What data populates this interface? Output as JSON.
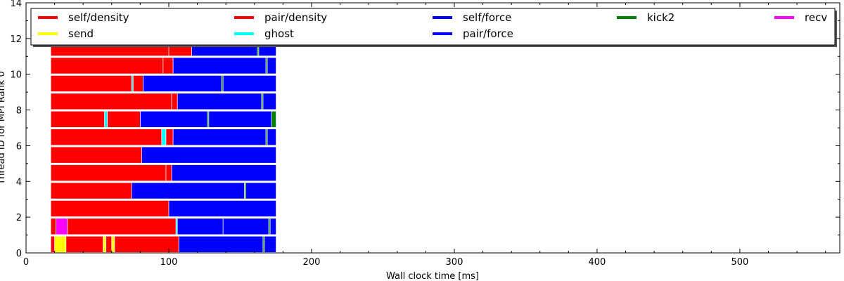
{
  "chart_data": {
    "type": "bar",
    "xlabel": "Wall clock time [ms]",
    "ylabel": "Thread ID for MPI Rank 0",
    "xlim": [
      0,
      570
    ],
    "ylim": [
      0,
      14
    ],
    "xticks": [
      0,
      100,
      200,
      300,
      400,
      500
    ],
    "yticks": [
      0,
      2,
      4,
      6,
      8,
      10,
      12,
      14
    ],
    "grid": false,
    "legend_placement": "top",
    "legend": [
      {
        "label": "self/density",
        "color": "#ff0000"
      },
      {
        "label": "pair/density",
        "color": "#ff0000"
      },
      {
        "label": "self/force",
        "color": "#0000ff"
      },
      {
        "label": "kick2",
        "color": "#008000"
      },
      {
        "label": "recv",
        "color": "#ff00ff"
      },
      {
        "label": "send",
        "color": "#ffff00"
      },
      {
        "label": "ghost",
        "color": "#00ffff"
      },
      {
        "label": "pair/force",
        "color": "#0000ff"
      }
    ],
    "threads": [
      {
        "thread": 0,
        "tasks": [
          {
            "task": "self/density",
            "start": 17.5,
            "end": 20
          },
          {
            "task": "send",
            "start": 20,
            "end": 28
          },
          {
            "task": "pair/density",
            "start": 28,
            "end": 54
          },
          {
            "task": "send",
            "start": 54,
            "end": 56
          },
          {
            "task": "pair/density",
            "start": 56,
            "end": 60
          },
          {
            "task": "send",
            "start": 60,
            "end": 62
          },
          {
            "task": "pair/density",
            "start": 62,
            "end": 107
          },
          {
            "task": "self/force",
            "start": 107,
            "end": 166
          },
          {
            "task": "kick2",
            "start": 166,
            "end": 167
          },
          {
            "task": "pair/force",
            "start": 167,
            "end": 175
          }
        ]
      },
      {
        "thread": 1,
        "tasks": [
          {
            "task": "self/density",
            "start": 17.5,
            "end": 21
          },
          {
            "task": "recv",
            "start": 21,
            "end": 29
          },
          {
            "task": "pair/density",
            "start": 29,
            "end": 105
          },
          {
            "task": "ghost",
            "start": 105,
            "end": 106
          },
          {
            "task": "self/force",
            "start": 106,
            "end": 138
          },
          {
            "task": "pair/force",
            "start": 138,
            "end": 170
          },
          {
            "task": "kick2",
            "start": 170,
            "end": 171
          },
          {
            "task": "pair/force",
            "start": 171,
            "end": 175
          }
        ]
      },
      {
        "thread": 2,
        "tasks": [
          {
            "task": "self/density",
            "start": 17.5,
            "end": 100
          },
          {
            "task": "self/force",
            "start": 100,
            "end": 175
          }
        ]
      },
      {
        "thread": 3,
        "tasks": [
          {
            "task": "self/density",
            "start": 17.5,
            "end": 74
          },
          {
            "task": "self/force",
            "start": 74,
            "end": 153
          },
          {
            "task": "kick2",
            "start": 153,
            "end": 154
          },
          {
            "task": "pair/force",
            "start": 154,
            "end": 175
          }
        ]
      },
      {
        "thread": 4,
        "tasks": [
          {
            "task": "self/density",
            "start": 17.5,
            "end": 98
          },
          {
            "task": "pair/density",
            "start": 98,
            "end": 102
          },
          {
            "task": "self/force",
            "start": 102,
            "end": 175
          }
        ]
      },
      {
        "thread": 5,
        "tasks": [
          {
            "task": "self/density",
            "start": 17.5,
            "end": 81
          },
          {
            "task": "self/force",
            "start": 81,
            "end": 175
          }
        ]
      },
      {
        "thread": 6,
        "tasks": [
          {
            "task": "self/density",
            "start": 17.5,
            "end": 95
          },
          {
            "task": "ghost",
            "start": 95,
            "end": 98
          },
          {
            "task": "pair/density",
            "start": 98,
            "end": 103
          },
          {
            "task": "self/force",
            "start": 103,
            "end": 168
          },
          {
            "task": "kick2",
            "start": 168,
            "end": 169
          },
          {
            "task": "pair/force",
            "start": 169,
            "end": 175
          }
        ]
      },
      {
        "thread": 7,
        "tasks": [
          {
            "task": "self/density",
            "start": 17.5,
            "end": 55
          },
          {
            "task": "ghost",
            "start": 55,
            "end": 57
          },
          {
            "task": "pair/density",
            "start": 57,
            "end": 80
          },
          {
            "task": "self/force",
            "start": 80,
            "end": 127
          },
          {
            "task": "kick2",
            "start": 127,
            "end": 128
          },
          {
            "task": "pair/force",
            "start": 128,
            "end": 172
          },
          {
            "task": "kick2",
            "start": 172,
            "end": 175
          }
        ]
      },
      {
        "thread": 8,
        "tasks": [
          {
            "task": "self/density",
            "start": 17.5,
            "end": 102
          },
          {
            "task": "pair/density",
            "start": 102,
            "end": 106
          },
          {
            "task": "self/force",
            "start": 106,
            "end": 165
          },
          {
            "task": "kick2",
            "start": 165,
            "end": 166
          },
          {
            "task": "pair/force",
            "start": 166,
            "end": 175
          }
        ]
      },
      {
        "thread": 9,
        "tasks": [
          {
            "task": "self/density",
            "start": 17.5,
            "end": 74
          },
          {
            "task": "ghost",
            "start": 74,
            "end": 75
          },
          {
            "task": "pair/density",
            "start": 75,
            "end": 82
          },
          {
            "task": "self/force",
            "start": 82,
            "end": 137
          },
          {
            "task": "kick2",
            "start": 137,
            "end": 138
          },
          {
            "task": "pair/force",
            "start": 138,
            "end": 175
          }
        ]
      },
      {
        "thread": 10,
        "tasks": [
          {
            "task": "self/density",
            "start": 17.5,
            "end": 96
          },
          {
            "task": "pair/density",
            "start": 96,
            "end": 103
          },
          {
            "task": "self/force",
            "start": 103,
            "end": 168
          },
          {
            "task": "kick2",
            "start": 168,
            "end": 169
          },
          {
            "task": "pair/force",
            "start": 169,
            "end": 175
          }
        ]
      },
      {
        "thread": 11,
        "tasks": [
          {
            "task": "self/density",
            "start": 17.5,
            "end": 100
          },
          {
            "task": "pair/density",
            "start": 100,
            "end": 116
          },
          {
            "task": "self/force",
            "start": 116,
            "end": 162
          },
          {
            "task": "kick2",
            "start": 162,
            "end": 163
          },
          {
            "task": "pair/force",
            "start": 163,
            "end": 175
          }
        ]
      }
    ]
  }
}
